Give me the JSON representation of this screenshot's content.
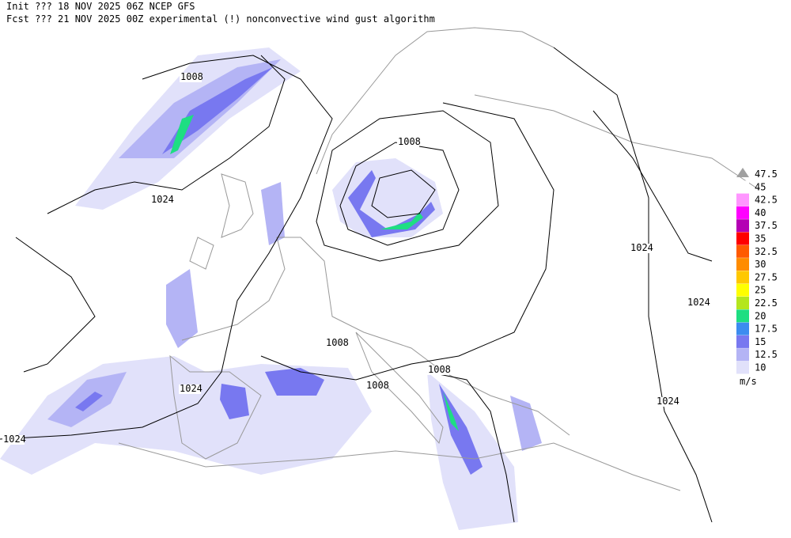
{
  "header": {
    "init": "Init  ??? 18 NOV 2025 06Z  NCEP GFS",
    "forecast": "Fcst ??? 21 NOV 2025 00Z  experimental (!) nonconvective wind gust algorithm"
  },
  "isobar_labels": [
    "1008",
    "1024",
    "1008",
    "1024",
    "1024",
    "1008",
    "1008",
    "1008",
    "1024",
    "1024",
    "1024"
  ],
  "colorbar": {
    "levels": [
      {
        "label": "47.5",
        "color": "#a0a0a0"
      },
      {
        "label": "45",
        "color": "#ffffff"
      },
      {
        "label": "42.5",
        "color": "#ff96ff"
      },
      {
        "label": "40",
        "color": "#ff00ff"
      },
      {
        "label": "37.5",
        "color": "#b400b4"
      },
      {
        "label": "35",
        "color": "#ff0000"
      },
      {
        "label": "32.5",
        "color": "#ff5a00"
      },
      {
        "label": "30",
        "color": "#ff8c00"
      },
      {
        "label": "27.5",
        "color": "#ffc800"
      },
      {
        "label": "25",
        "color": "#ffff00"
      },
      {
        "label": "22.5",
        "color": "#b4e61e"
      },
      {
        "label": "20",
        "color": "#1ede82"
      },
      {
        "label": "17.5",
        "color": "#3c8cf0"
      },
      {
        "label": "15",
        "color": "#7878f0"
      },
      {
        "label": "12.5",
        "color": "#b4b4f5"
      },
      {
        "label": "10",
        "color": "#e1e1fa"
      }
    ],
    "unit": "m/s"
  }
}
